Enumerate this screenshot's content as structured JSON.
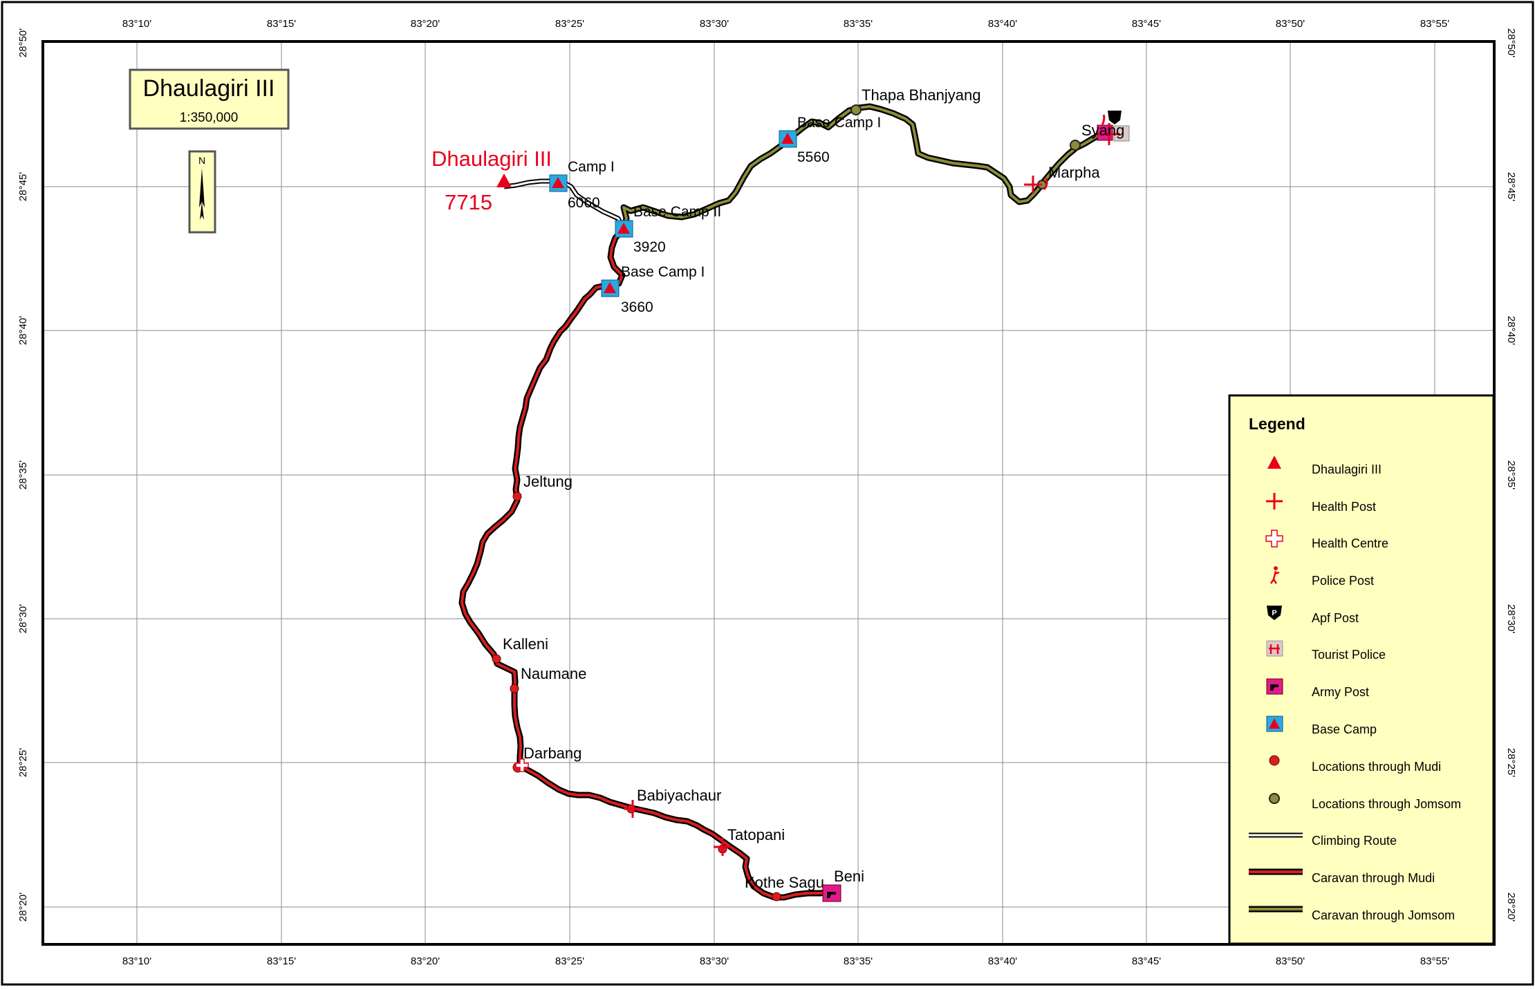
{
  "map": {
    "title": "Dhaulagiri III",
    "scale": "1:350,000",
    "north_label": "N",
    "grid": {
      "lon_ticks": [
        "83°10'",
        "83°15'",
        "83°20'",
        "83°25'",
        "83°30'",
        "83°35'",
        "83°40'",
        "83°45'",
        "83°50'",
        "83°55'"
      ],
      "lat_ticks": [
        "28°50'",
        "28°45'",
        "28°40'",
        "28°35'",
        "28°30'",
        "28°25'",
        "28°20'"
      ]
    },
    "peak": {
      "name": "Dhaulagiri III",
      "elevation": "7715",
      "color": "#e8001c"
    },
    "places": [
      {
        "name": "Camp I",
        "elevation": "6060",
        "type": "base-camp"
      },
      {
        "name": "Base Camp II",
        "elevation": "3920",
        "type": "base-camp"
      },
      {
        "name": "Base Camp I",
        "elevation": "3660",
        "type": "base-camp"
      },
      {
        "name": "Base Camp I",
        "elevation": "5560",
        "type": "base-camp"
      },
      {
        "name": "Thapa Bhanjyang",
        "type": "jomsom-location"
      },
      {
        "name": "Syang",
        "type": "jomsom-location"
      },
      {
        "name": "Marpha",
        "type": "health-post"
      },
      {
        "name": "Jeltung",
        "type": "mudi-location"
      },
      {
        "name": "Kalleni",
        "type": "mudi-location"
      },
      {
        "name": "Naumane",
        "type": "mudi-location"
      },
      {
        "name": "Darbang",
        "type": "health-centre"
      },
      {
        "name": "Babiyachaur",
        "type": "health-post"
      },
      {
        "name": "Tatopani",
        "type": "health-post"
      },
      {
        "name": "Kothe Sagu",
        "type": "mudi-location"
      },
      {
        "name": "Beni",
        "type": "army-post"
      }
    ],
    "routes": {
      "climbing": {
        "name": "Climbing Route",
        "color": "#ffffff"
      },
      "mudi": {
        "name": "Caravan through Mudi",
        "color": "#d81e1e"
      },
      "jomsom": {
        "name": "Caravan through Jomsom",
        "color": "#8c8c3a"
      }
    }
  },
  "legend": {
    "title": "Legend",
    "items": [
      {
        "label": "Dhaulagiri III",
        "icon": "peak-triangle-icon"
      },
      {
        "label": "Health Post",
        "icon": "health-post-cross-icon"
      },
      {
        "label": "Health Centre",
        "icon": "health-centre-cross-icon"
      },
      {
        "label": "Police Post",
        "icon": "police-post-icon"
      },
      {
        "label": "Apf Post",
        "icon": "apf-post-shield-icon"
      },
      {
        "label": "Tourist Police",
        "icon": "tourist-police-icon"
      },
      {
        "label": "Army Post",
        "icon": "army-post-icon"
      },
      {
        "label": "Base Camp",
        "icon": "base-camp-tent-icon"
      },
      {
        "label": "Locations through Mudi",
        "icon": "mudi-location-dot-icon"
      },
      {
        "label": "Locations through Jomsom",
        "icon": "jomsom-location-dot-icon"
      },
      {
        "label": "Climbing Route",
        "icon": "climbing-route-line-icon"
      },
      {
        "label": "Caravan through Mudi",
        "icon": "mudi-caravan-line-icon"
      },
      {
        "label": "Caravan through Jomsom",
        "icon": "jomsom-caravan-line-icon"
      }
    ]
  }
}
